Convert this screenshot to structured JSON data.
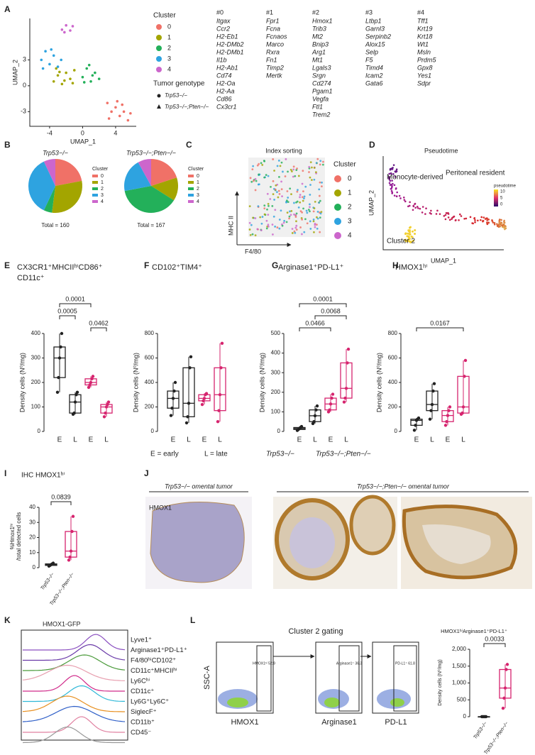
{
  "panel_labels": [
    "A",
    "B",
    "C",
    "D",
    "E",
    "F",
    "G",
    "H",
    "I",
    "J",
    "K",
    "L"
  ],
  "a": {
    "xlabel": "UMAP_1",
    "ylabel": "UMAP_2",
    "xlim": [
      -6.4,
      6.5
    ],
    "ylim": [
      -4.7,
      7.8
    ],
    "xticks": [
      -4,
      0,
      4
    ],
    "yticks": [
      -3,
      0,
      3
    ],
    "legend_title": "Cluster",
    "genotype_title": "Tumor genotype",
    "genotypes": [
      "Trp53−/−",
      "Trp53−/−;Pten−/−"
    ],
    "clusters": [
      {
        "name": "0",
        "color": "#f07167",
        "points": [
          [
            3,
            -2
          ],
          [
            3.5,
            -3
          ],
          [
            4,
            -2.5
          ],
          [
            4.5,
            -3.5
          ],
          [
            5,
            -3
          ],
          [
            5.5,
            -4
          ],
          [
            4.2,
            -1.8
          ],
          [
            3.2,
            -3.8
          ],
          [
            5.8,
            -3.2
          ],
          [
            4.8,
            -2.2
          ]
        ]
      },
      {
        "name": "1",
        "color": "#a3a500",
        "points": [
          [
            -3.5,
            0.5
          ],
          [
            -3,
            1.2
          ],
          [
            -2.5,
            0.2
          ],
          [
            -2,
            1.5
          ],
          [
            -1.5,
            0.8
          ],
          [
            -1,
            1.8
          ],
          [
            -3.2,
            2
          ],
          [
            -2.2,
            0.6
          ],
          [
            -1.2,
            0.3
          ],
          [
            -2.8,
            1.6
          ]
        ]
      },
      {
        "name": "2",
        "color": "#23b05a",
        "points": [
          [
            0,
            1
          ],
          [
            0.5,
            2
          ],
          [
            1,
            0.5
          ],
          [
            1.5,
            1.5
          ],
          [
            2,
            0.8
          ],
          [
            0.8,
            2.4
          ],
          [
            1.2,
            1.2
          ],
          [
            0.2,
            0.4
          ]
        ]
      },
      {
        "name": "3",
        "color": "#2ea3e0",
        "points": [
          [
            -5,
            3
          ],
          [
            -4.5,
            4
          ],
          [
            -4,
            2.5
          ],
          [
            -3.5,
            3.5
          ],
          [
            -3,
            2.2
          ],
          [
            -4.8,
            2
          ],
          [
            -3.8,
            4.2
          ],
          [
            -2.6,
            3
          ]
        ]
      },
      {
        "name": "4",
        "color": "#cc66cc",
        "points": [
          [
            -2.5,
            6.5
          ],
          [
            -2,
            7
          ],
          [
            -1.5,
            6.4
          ],
          [
            -1.2,
            6.9
          ],
          [
            -2.2,
            6.2
          ]
        ]
      }
    ],
    "gene_lists": [
      {
        "name": "#0",
        "color": "#e0708a",
        "genes": [
          "Itgax",
          "Ccr2",
          "H2-Eb1",
          "H2-DMb2",
          "H2-DMb1",
          "Il1b",
          "H2-Ab1",
          "Cd74",
          "H2-Oa",
          "H2-Aa",
          "Cd86",
          "Cx3cr1"
        ]
      },
      {
        "name": "#1",
        "color": "#9a9a10",
        "genes": [
          "Fpr1",
          "Fcna",
          "Fcnaos",
          "Marco",
          "Rxra",
          "Fn1",
          "Timp2",
          "Mertk"
        ]
      },
      {
        "name": "#2",
        "color": "#2a9a3e",
        "genes": [
          "Hmox1",
          "Trib3",
          "Mt2",
          "Bnip3",
          "Arg1",
          "Mt1",
          "Lgals3",
          "Srgn",
          "Cd274",
          "Pgam1",
          "Vegfa",
          "Ftl1",
          "Trem2"
        ]
      },
      {
        "name": "#3",
        "color": "#36a0d8",
        "genes": [
          "Ltbp1",
          "Garnl3",
          "Serpinb2",
          "Alox15",
          "Selp",
          "F5",
          "Timd4",
          "Icam2",
          "Gata6"
        ]
      },
      {
        "name": "#4",
        "color": "#c050b8",
        "genes": [
          "Tff1",
          "Krt19",
          "Krt18",
          "Wt1",
          "Msln",
          "Prdm5",
          "Gpx8",
          "Yes1",
          "Sdpr"
        ]
      }
    ]
  },
  "b": {
    "legend_title": "Cluster",
    "pies": [
      {
        "title": "Trp53−/−",
        "total": "Total = 160",
        "values": [
          22,
          30,
          5,
          36,
          7
        ]
      },
      {
        "title": "Trp53−/−;Pten−/−",
        "total": "Total = 167",
        "values": [
          20,
          14,
          38,
          20,
          8
        ]
      }
    ]
  },
  "c": {
    "title": "Index sorting",
    "xlabel": "F4/80",
    "ylabel": "MHC II",
    "legend_title": "Cluster"
  },
  "d": {
    "title": "Pseudotime",
    "xlabel": "UMAP_1",
    "ylabel": "UMAP_2",
    "legend_title": "pseudotime",
    "legend_ticks": [
      10,
      5,
      0
    ],
    "annotations": [
      {
        "text": "Monocyte-derived",
        "color": "#e0605a"
      },
      {
        "text": "Peritoneal resident",
        "color": "#36a0d8"
      },
      {
        "text": "Cluster 2",
        "color": "#2a9a3e"
      }
    ]
  },
  "boxes": {
    "groups": [
      "E",
      "L",
      "E",
      "L"
    ],
    "group_colors": [
      "#222222",
      "#222222",
      "#d6246e",
      "#d6246e"
    ],
    "ylabel": "Density cells (N⁰/mg)",
    "notes": [
      "E = early",
      "L = late"
    ],
    "genotypes": [
      "Trp53−/−",
      "Trp53−/−;Pten−/−"
    ],
    "panels": [
      {
        "title": [
          "CX3CR1⁺MHCIIʰⁱCD86⁺",
          "CD11c⁺"
        ],
        "ylim": [
          0,
          400
        ],
        "yticks": [
          0,
          100,
          200,
          300,
          400
        ],
        "boxes": [
          [
            160,
            220,
            300,
            345,
            400
          ],
          [
            70,
            75,
            120,
            150,
            160
          ],
          [
            180,
            190,
            200,
            215,
            225
          ],
          [
            60,
            75,
            100,
            110,
            120
          ]
        ],
        "comparisons": [
          {
            "pair": [
              0,
              2
            ],
            "p": 0.0001
          },
          {
            "pair": [
              0,
              1
            ],
            "p": 0.0005
          },
          {
            "pair": [
              2,
              3
            ],
            "p": 0.0462
          }
        ]
      },
      {
        "title": [
          "CD102⁺TIM4⁺"
        ],
        "ylim": [
          0,
          800
        ],
        "yticks": [
          0,
          200,
          400,
          600,
          800
        ],
        "boxes": [
          [
            130,
            190,
            270,
            330,
            400
          ],
          [
            70,
            120,
            230,
            520,
            610
          ],
          [
            220,
            250,
            270,
            300,
            310
          ],
          [
            80,
            170,
            300,
            520,
            720
          ]
        ],
        "comparisons": []
      },
      {
        "title": [
          "Arginase1⁺PD-L1⁺"
        ],
        "ylim": [
          0,
          500
        ],
        "yticks": [
          0,
          100,
          200,
          300,
          400,
          500
        ],
        "boxes": [
          [
            5,
            10,
            15,
            20,
            25
          ],
          [
            40,
            50,
            80,
            110,
            130
          ],
          [
            100,
            110,
            140,
            170,
            190
          ],
          [
            150,
            170,
            220,
            350,
            420
          ]
        ],
        "comparisons": [
          {
            "pair": [
              0,
              3
            ],
            "p": 0.0001
          },
          {
            "pair": [
              1,
              3
            ],
            "p": 0.0068
          },
          {
            "pair": [
              0,
              2
            ],
            "p": 0.0466
          }
        ]
      },
      {
        "title": [
          "HMOX1ʰⁱ"
        ],
        "ylim": [
          0,
          800
        ],
        "yticks": [
          0,
          200,
          400,
          600,
          800
        ],
        "boxes": [
          [
            10,
            50,
            90,
            100,
            110
          ],
          [
            100,
            170,
            220,
            330,
            390
          ],
          [
            50,
            80,
            130,
            170,
            200
          ],
          [
            140,
            150,
            200,
            450,
            580
          ]
        ],
        "comparisons": [
          {
            "pair": [
              0,
              3
            ],
            "p": 0.0167
          }
        ]
      }
    ]
  },
  "i": {
    "title": "IHC HMOX1ʰⁱ",
    "ylabel": [
      "%Hmox1ʰⁱ",
      "/total detected cells"
    ],
    "ylim": [
      0,
      40
    ],
    "yticks": [
      0,
      10,
      20,
      30,
      40
    ],
    "groups": [
      "Trp53−/−",
      "Trp53−/−;Pten−/−"
    ],
    "colors": [
      "#222222",
      "#d6246e"
    ],
    "boxes": [
      [
        1,
        1.5,
        2,
        2.5,
        3
      ],
      [
        5,
        7,
        11,
        24,
        34
      ]
    ],
    "comparisons": [
      {
        "pair": [
          0,
          1
        ],
        "p": 0.0839
      }
    ]
  },
  "j": {
    "stain": "HMOX1",
    "titles": [
      "Trp53−/− omental tumor",
      "Trp53−/−;Pten−/− omental tumor"
    ]
  },
  "k": {
    "title": "HMOX1-GFP",
    "populations": [
      {
        "name": "Lyve1⁺",
        "color": "#8a4fc0"
      },
      {
        "name": "Arginase1⁺PD-L1⁺",
        "color": "#6a3aa8"
      },
      {
        "name": "F4/80ʰⁱCD102⁺",
        "color": "#4a9a3a"
      },
      {
        "name": "CD11c⁺MHCIIʰⁱ",
        "color": "#e8a0b0"
      },
      {
        "name": "Ly6Cʰⁱ",
        "color": "#d02a8a"
      },
      {
        "name": "CD11c⁺",
        "color": "#30b8d8"
      },
      {
        "name": "Ly6G⁺Ly6C⁺",
        "color": "#e89020"
      },
      {
        "name": "SiglecF⁺",
        "color": "#3060c8"
      },
      {
        "name": "CD11b⁺",
        "color": "#e080a0"
      },
      {
        "name": "CD45⁻",
        "color": "#999999"
      }
    ]
  },
  "l": {
    "title": "Cluster 2 gating",
    "ylabel": "SSC-A",
    "xlabels": [
      "HMOX1",
      "Arginase1",
      "PD-L1"
    ],
    "gates": [
      "HMOX1ʰⁱ 52.9",
      "Arginase1⁺ 36.3",
      "PD-L1⁺ 61.8"
    ],
    "box_title": "HMOX1ʰⁱArginase1⁺PD-L1⁺",
    "ylabel2": "Density cells (N⁰/mg)",
    "ylim": [
      0,
      2000
    ],
    "yticks": [
      0,
      {
        "value": 500,
        "label": "500"
      },
      {
        "value": 1000,
        "label": "1,000"
      },
      {
        "value": 1500,
        "label": "1,500"
      },
      {
        "value": 2000,
        "label": "2,000"
      }
    ],
    "groups": [
      "Trp53−/−",
      "Trp53−/−;Pten−/−"
    ],
    "colors": [
      "#222222",
      "#d6246e"
    ],
    "boxes": [
      [
        0,
        0,
        0,
        0,
        0
      ],
      [
        250,
        550,
        850,
        1400,
        1550
      ]
    ],
    "comparisons": [
      {
        "pair": [
          0,
          1
        ],
        "p": 0.0033
      }
    ]
  }
}
